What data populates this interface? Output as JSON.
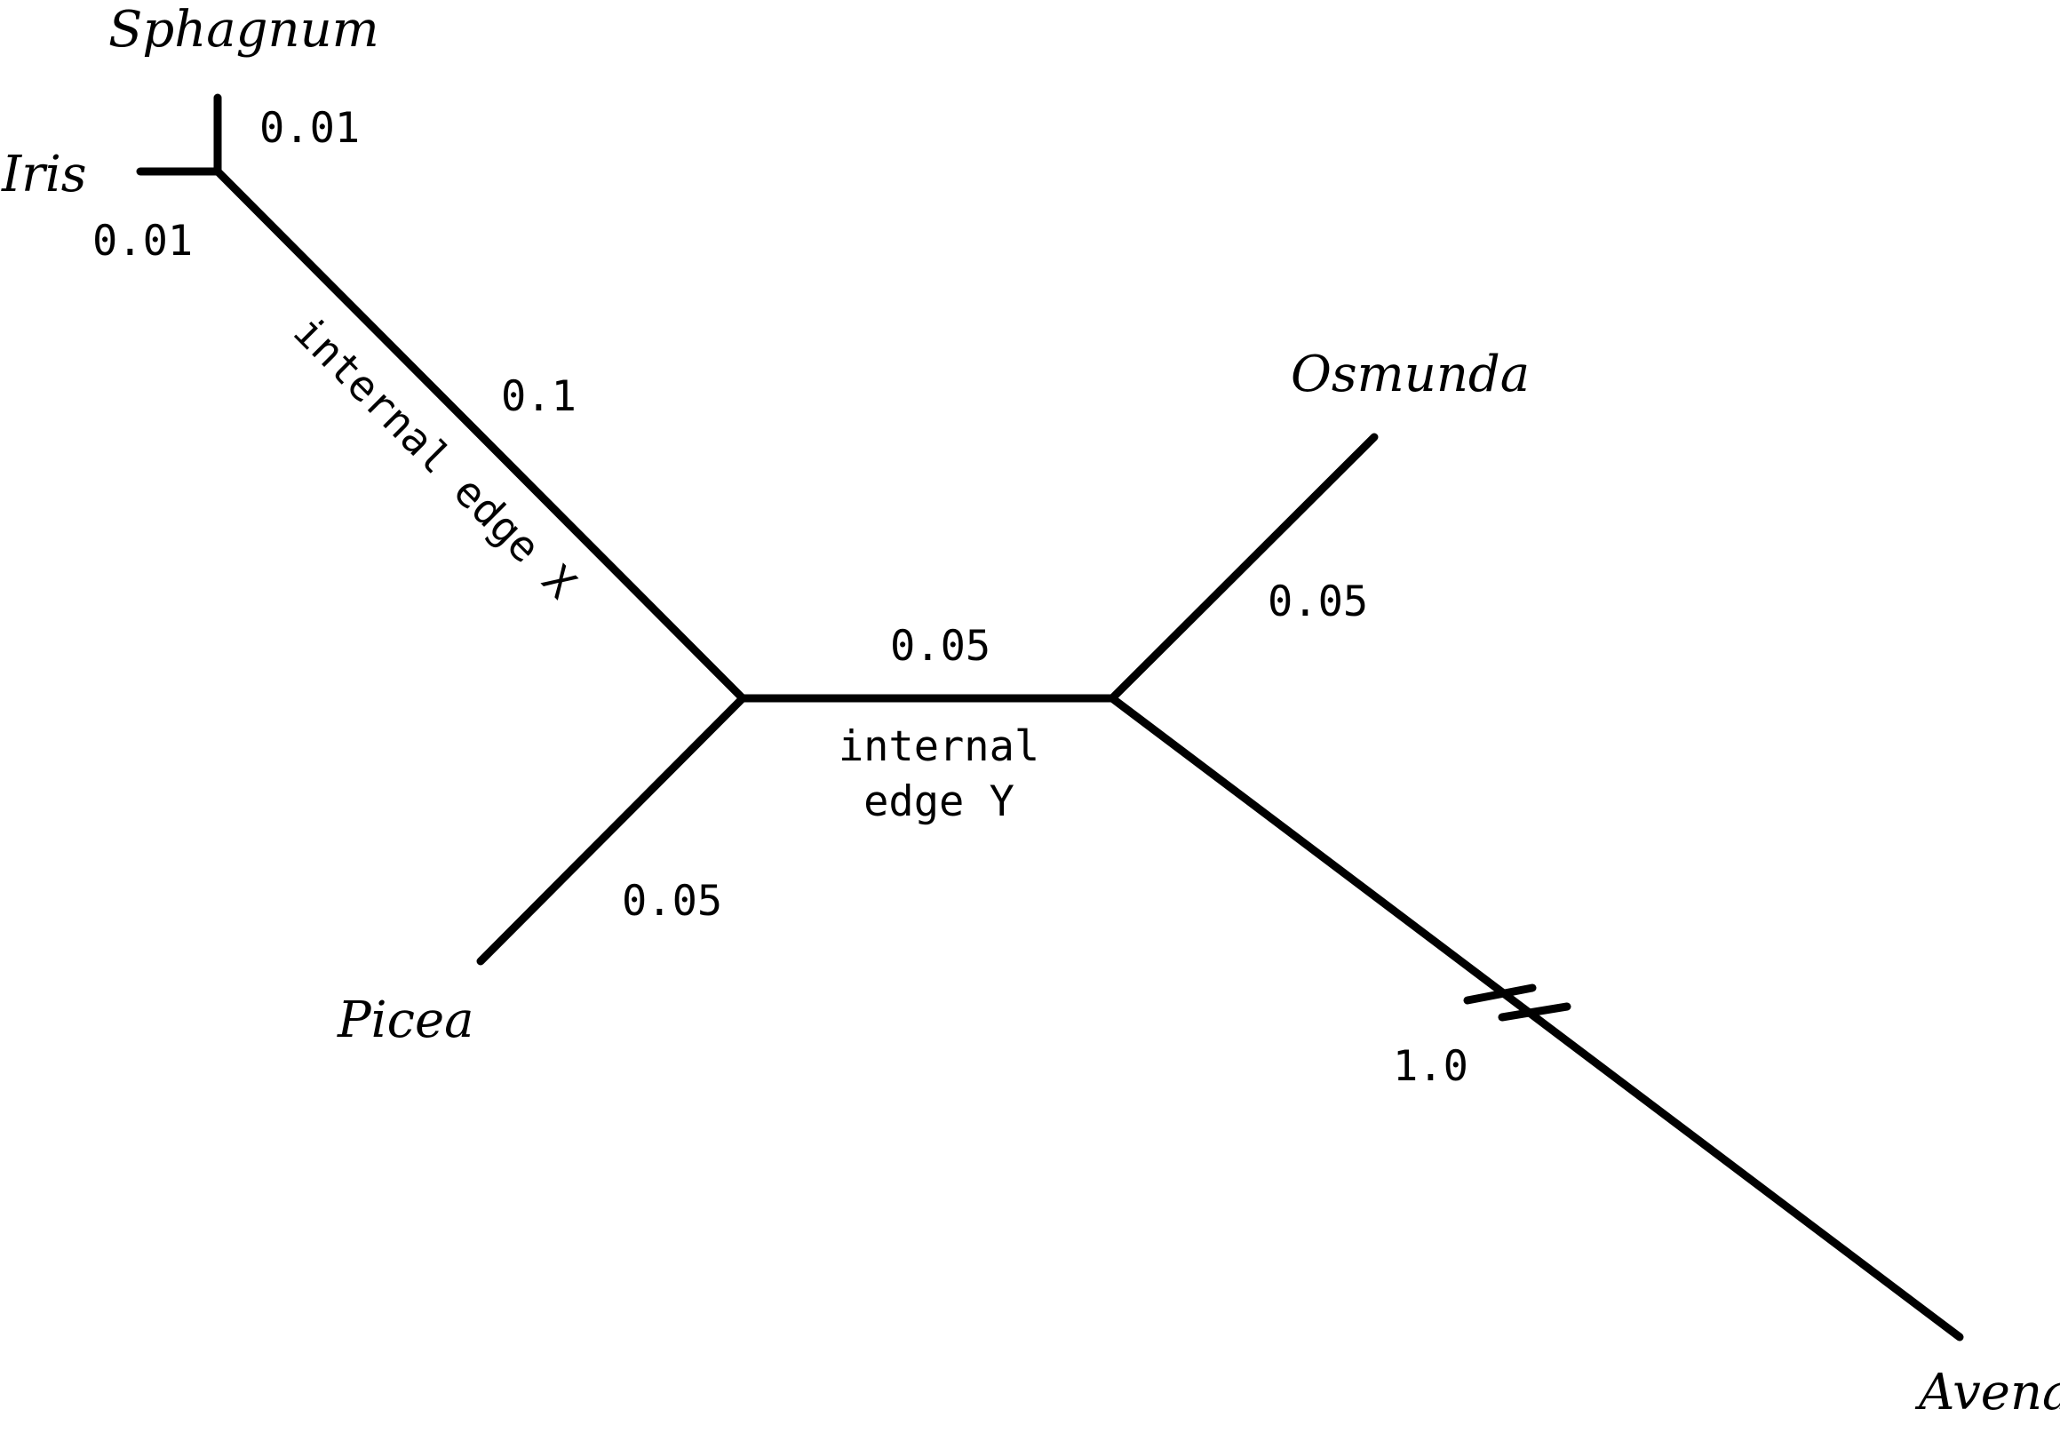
{
  "taxa": {
    "sphagnum": "Sphagnum",
    "iris": "Iris",
    "osmunda": "Osmunda",
    "picea": "Picea",
    "avena": "Avena"
  },
  "branch_lengths": {
    "sphagnum": "0.01",
    "iris": "0.01",
    "internal_x": "0.1",
    "internal_y": "0.05",
    "osmunda": "0.05",
    "picea": "0.05",
    "avena": "1.0"
  },
  "edge_labels": {
    "internal_x": "internal edge X",
    "internal_y_line1": "internal",
    "internal_y_line2": "edge Y"
  },
  "colors": {
    "line": "#000000",
    "background": "#ffffff"
  }
}
